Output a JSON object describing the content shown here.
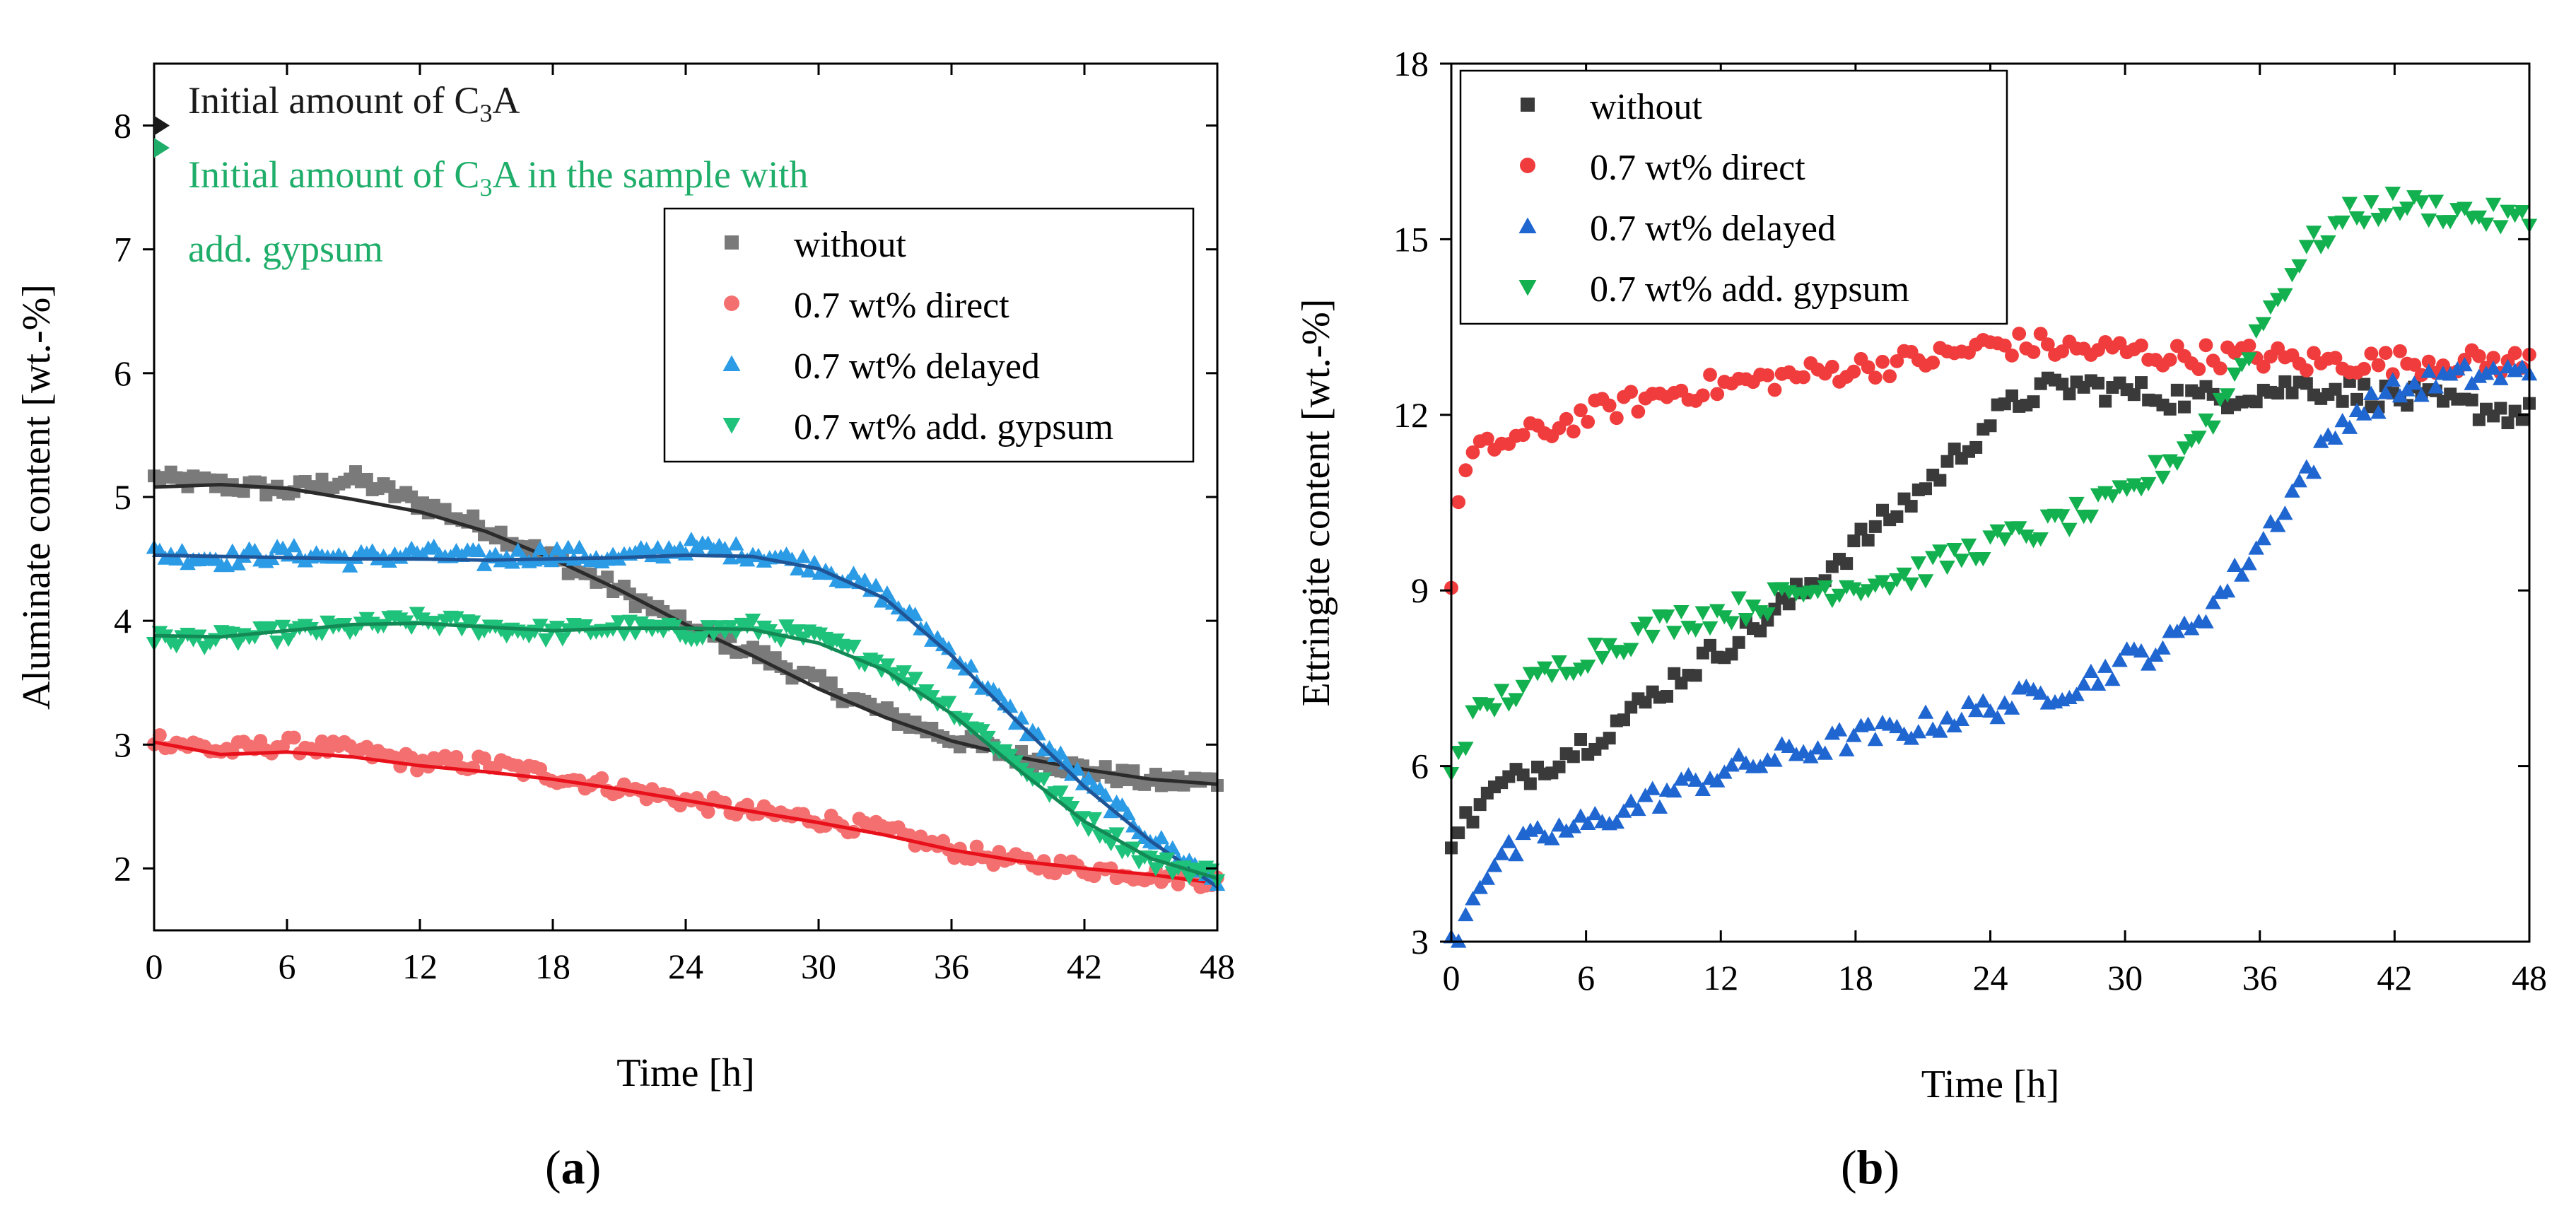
{
  "chart_data": [
    {
      "id": "a",
      "type": "scatter",
      "caption_letter": "a",
      "xlabel": "Time [h]",
      "ylabel": "Aluminate content [wt.-%]",
      "xlim": [
        0,
        48
      ],
      "ylim": [
        1.5,
        8.5
      ],
      "xticks": [
        "0",
        "6",
        "12",
        "18",
        "24",
        "30",
        "36",
        "42",
        "48"
      ],
      "yticks": [
        "2",
        "3",
        "4",
        "5",
        "6",
        "7",
        "8"
      ],
      "xtick_values": [
        0,
        6,
        12,
        18,
        24,
        30,
        36,
        42,
        48
      ],
      "ytick_values": [
        2,
        3,
        4,
        5,
        6,
        7,
        8
      ],
      "grid": false,
      "legend_position": "top-right",
      "annotations": [
        {
          "text": "Initial amount of C3A",
          "parts": [
            "Initial amount of C",
            "3",
            "A"
          ],
          "y": 8.0,
          "color": "#1a1a1a"
        },
        {
          "text": "Initial amount of C3A in the sample with add. gypsum",
          "parts": [
            "Initial amount of C",
            "3",
            "A in the sample with"
          ],
          "line2": "add. gypsum",
          "y": 7.82,
          "color": "#1fae6a"
        }
      ],
      "series": [
        {
          "name": "without",
          "marker": "square",
          "color": "#7a7a7a",
          "fit_color": "#2b2b2b",
          "x": [
            0,
            3,
            6,
            9,
            12,
            15,
            18,
            21,
            24,
            27,
            30,
            33,
            36,
            39,
            42,
            45,
            48
          ],
          "y": [
            5.15,
            5.1,
            5.05,
            5.15,
            4.95,
            4.75,
            4.5,
            4.25,
            3.95,
            3.75,
            3.5,
            3.25,
            3.05,
            2.9,
            2.8,
            2.7,
            2.7
          ],
          "fit_x": [
            0,
            3,
            6,
            9,
            12,
            15,
            18,
            21,
            24,
            27,
            30,
            33,
            36,
            39,
            42,
            45,
            48
          ],
          "fit_y": [
            5.08,
            5.1,
            5.07,
            4.98,
            4.88,
            4.72,
            4.5,
            4.25,
            3.97,
            3.72,
            3.45,
            3.22,
            3.03,
            2.9,
            2.8,
            2.72,
            2.68
          ]
        },
        {
          "name": "0.7 wt% direct",
          "marker": "circle",
          "color": "#f47070",
          "fit_color": "#e8101a",
          "x": [
            0,
            3,
            6,
            9,
            12,
            15,
            18,
            21,
            24,
            27,
            30,
            33,
            36,
            39,
            42,
            45,
            48
          ],
          "y": [
            3.05,
            2.95,
            3.0,
            2.95,
            2.85,
            2.85,
            2.75,
            2.65,
            2.55,
            2.45,
            2.4,
            2.3,
            2.15,
            2.05,
            2.0,
            1.95,
            1.9
          ],
          "fit_x": [
            0,
            3,
            6,
            9,
            12,
            15,
            18,
            21,
            24,
            27,
            30,
            33,
            36,
            39,
            42,
            45,
            48
          ],
          "fit_y": [
            3.02,
            2.92,
            2.94,
            2.9,
            2.83,
            2.78,
            2.72,
            2.64,
            2.55,
            2.46,
            2.37,
            2.27,
            2.15,
            2.06,
            2.0,
            1.95,
            1.88
          ]
        },
        {
          "name": "0.7 wt% delayed",
          "marker": "triangle-up",
          "color": "#2b9be6",
          "fit_color": "#1f5596",
          "x": [
            0,
            3,
            6,
            9,
            12,
            15,
            18,
            21,
            24,
            27,
            30,
            33,
            36,
            39,
            42,
            45,
            48
          ],
          "y": [
            4.55,
            4.5,
            4.55,
            4.5,
            4.55,
            4.5,
            4.55,
            4.5,
            4.6,
            4.55,
            4.45,
            4.2,
            3.75,
            3.2,
            2.7,
            2.25,
            1.9
          ],
          "fit_x": [
            0,
            3,
            6,
            9,
            12,
            15,
            18,
            21,
            24,
            27,
            30,
            33,
            36,
            39,
            42,
            45,
            48
          ],
          "fit_y": [
            4.53,
            4.52,
            4.51,
            4.5,
            4.5,
            4.49,
            4.5,
            4.51,
            4.53,
            4.52,
            4.42,
            4.18,
            3.72,
            3.18,
            2.66,
            2.22,
            1.85
          ]
        },
        {
          "name": "0.7 wt% add. gypsum",
          "marker": "triangle-down",
          "color": "#1fc27a",
          "fit_color": "#138a55",
          "x": [
            0,
            3,
            6,
            9,
            12,
            15,
            18,
            21,
            24,
            27,
            30,
            33,
            36,
            39,
            42,
            45,
            48
          ],
          "y": [
            3.85,
            3.85,
            3.9,
            3.95,
            4.0,
            3.95,
            3.9,
            3.95,
            3.9,
            3.95,
            3.85,
            3.65,
            3.3,
            2.85,
            2.4,
            2.05,
            1.95
          ],
          "fit_x": [
            0,
            3,
            6,
            9,
            12,
            15,
            18,
            21,
            24,
            27,
            30,
            33,
            36,
            39,
            42,
            45,
            48
          ],
          "fit_y": [
            3.88,
            3.87,
            3.92,
            3.97,
            3.98,
            3.95,
            3.92,
            3.94,
            3.94,
            3.93,
            3.82,
            3.6,
            3.25,
            2.8,
            2.38,
            2.08,
            1.92
          ]
        }
      ]
    },
    {
      "id": "b",
      "type": "scatter",
      "caption_letter": "b",
      "xlabel": "Time [h]",
      "ylabel": "Ettringite content [wt.-%]",
      "xlim": [
        0,
        48
      ],
      "ylim": [
        3,
        18
      ],
      "xticks": [
        "0",
        "6",
        "12",
        "18",
        "24",
        "30",
        "36",
        "42",
        "48"
      ],
      "yticks": [
        "3",
        "6",
        "9",
        "12",
        "15",
        "18"
      ],
      "xtick_values": [
        0,
        6,
        12,
        18,
        24,
        30,
        36,
        42,
        48
      ],
      "ytick_values": [
        3,
        6,
        9,
        12,
        15,
        18
      ],
      "grid": false,
      "legend_position": "top-left",
      "series": [
        {
          "name": "without",
          "marker": "square",
          "color": "#3a3a3a",
          "x": [
            0,
            2,
            4,
            6,
            8,
            10,
            12,
            14,
            16,
            18,
            20,
            22,
            24,
            26,
            28,
            30,
            32,
            34,
            36,
            38,
            40,
            42,
            44,
            46,
            48
          ],
          "y": [
            4.8,
            5.6,
            6.0,
            6.4,
            6.9,
            7.5,
            8.0,
            8.5,
            9.1,
            9.8,
            10.4,
            11.1,
            11.9,
            12.4,
            12.5,
            12.4,
            12.3,
            12.3,
            12.4,
            12.5,
            12.4,
            12.3,
            12.2,
            12.1,
            12.0
          ]
        },
        {
          "name": "0.7 wt% direct",
          "marker": "circle",
          "color": "#f03c3c",
          "x": [
            0,
            0.4,
            1,
            2,
            4,
            6,
            8,
            10,
            12,
            14,
            16,
            18,
            20,
            22,
            24,
            26,
            28,
            30,
            32,
            34,
            36,
            38,
            40,
            42,
            44,
            46,
            48
          ],
          "y": [
            9.2,
            10.8,
            11.3,
            11.5,
            11.7,
            12.0,
            12.2,
            12.4,
            12.5,
            12.6,
            12.7,
            12.8,
            12.9,
            13.0,
            13.2,
            13.2,
            13.1,
            13.1,
            13.0,
            13.0,
            13.0,
            12.9,
            12.9,
            12.9,
            12.9,
            12.9,
            12.9
          ]
        },
        {
          "name": "0.7 wt% delayed",
          "marker": "triangle-up",
          "color": "#1f66d1",
          "x": [
            0,
            0.5,
            1,
            2,
            4,
            6,
            8,
            10,
            12,
            14,
            16,
            18,
            20,
            22,
            24,
            26,
            28,
            30,
            32,
            34,
            36,
            38,
            40,
            42,
            44,
            46,
            48
          ],
          "y": [
            3.0,
            3.3,
            3.9,
            4.4,
            4.8,
            5.0,
            5.3,
            5.6,
            5.9,
            6.1,
            6.3,
            6.5,
            6.6,
            6.8,
            7.0,
            7.2,
            7.4,
            7.8,
            8.1,
            8.8,
            9.8,
            11.0,
            12.0,
            12.4,
            12.6,
            12.7,
            12.7
          ]
        },
        {
          "name": "0.7 wt% add. gypsum",
          "marker": "triangle-down",
          "color": "#12b04e",
          "x": [
            0,
            0.5,
            1,
            2,
            4,
            6,
            8,
            10,
            12,
            14,
            16,
            18,
            20,
            22,
            24,
            26,
            28,
            30,
            32,
            34,
            36,
            38,
            40,
            42,
            44,
            46,
            48
          ],
          "y": [
            6.0,
            6.4,
            6.8,
            7.1,
            7.5,
            7.9,
            8.2,
            8.5,
            8.6,
            8.8,
            9.0,
            9.1,
            9.2,
            9.5,
            9.8,
            10.0,
            10.3,
            10.6,
            11.2,
            12.0,
            13.5,
            14.8,
            15.4,
            15.6,
            15.5,
            15.4,
            15.3
          ]
        }
      ]
    }
  ]
}
